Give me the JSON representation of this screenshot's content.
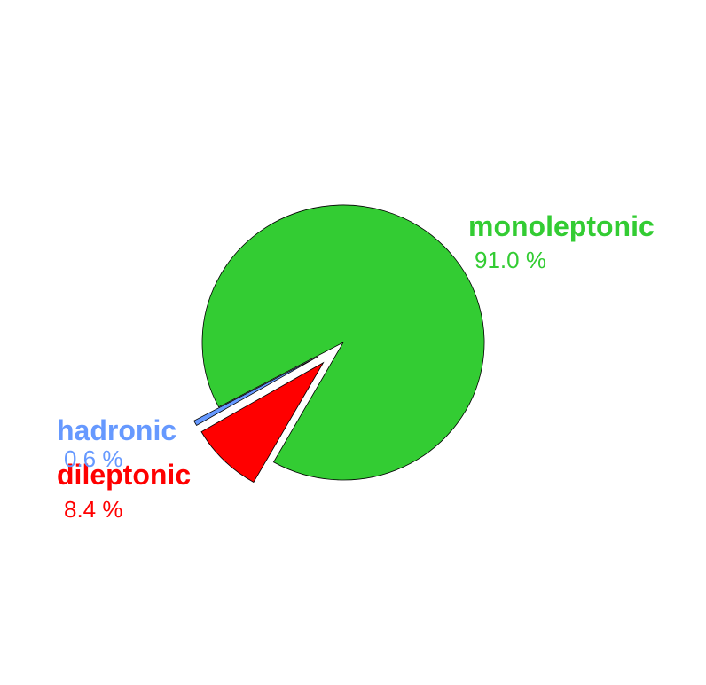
{
  "chart_data": {
    "type": "pie",
    "slices": [
      {
        "name": "monoleptonic",
        "value": 91.0,
        "percent_label": "91.0 %",
        "color": "#33cc33"
      },
      {
        "name": "dileptonic",
        "value": 8.4,
        "percent_label": "8.4 %",
        "color": "#ff0000"
      },
      {
        "name": "hadronic",
        "value": 0.6,
        "percent_label": "0.6 %",
        "color": "#6699ff"
      }
    ],
    "exploded": [
      "dileptonic",
      "hadronic"
    ],
    "legend": "none"
  }
}
